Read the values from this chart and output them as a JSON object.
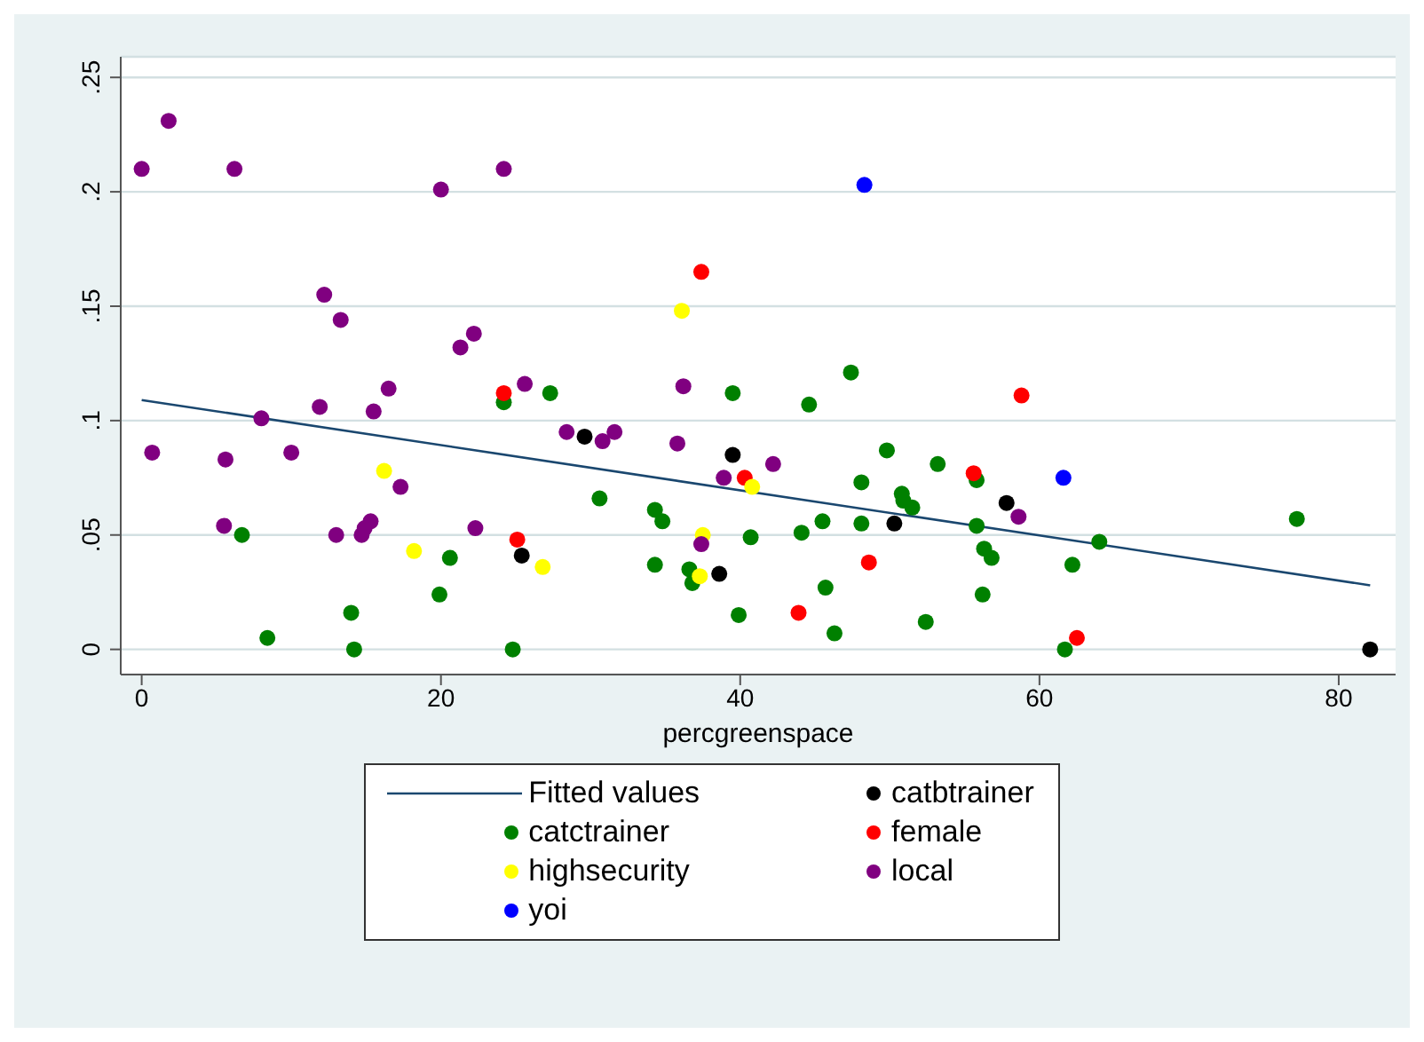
{
  "chart_data": {
    "type": "scatter",
    "xlabel": "percgreenspace",
    "xlim": [
      -1.4,
      83.8
    ],
    "ylim": [
      -0.011,
      0.259
    ],
    "xticks": [
      0,
      20,
      40,
      60,
      80
    ],
    "yticks": [
      {
        "value": 0,
        "label": "0"
      },
      {
        "value": 0.05,
        "label": ".05"
      },
      {
        "value": 0.1,
        "label": ".1"
      },
      {
        "value": 0.15,
        "label": ".15"
      },
      {
        "value": 0.2,
        "label": ".2"
      },
      {
        "value": 0.25,
        "label": ".25"
      }
    ],
    "grid": "y",
    "legend": "bottom",
    "marker": "circle",
    "series": [
      {
        "type": "line",
        "name": "Fitted values",
        "color": "#1a476f",
        "marker": "none",
        "line_style": "solid",
        "x": [
          0,
          82.1
        ],
        "values": [
          0.109,
          0.028
        ]
      },
      {
        "name": "catbtrainer",
        "color": "#000000",
        "x": [
          29.6,
          25.4,
          39.5,
          38.6,
          57.8,
          50.3,
          82.1
        ],
        "values": [
          0.093,
          0.041,
          0.085,
          0.033,
          0.064,
          0.055,
          0
        ]
      },
      {
        "name": "catctrainer",
        "color": "#008000",
        "x": [
          6.7,
          20.6,
          19.9,
          14.0,
          8.4,
          14.2,
          24.8,
          24.2,
          27.3,
          30.6,
          34.3,
          34.8,
          34.3,
          39.5,
          36.6,
          36.8,
          40.7,
          39.9,
          47.4,
          44.6,
          49.8,
          48.1,
          53.2,
          55.8,
          50.8,
          50.9,
          51.5,
          45.5,
          48.1,
          44.1,
          55.8,
          64.0,
          77.2,
          56.3,
          56.8,
          62.2,
          45.7,
          56.2,
          46.3,
          52.4,
          61.7
        ],
        "values": [
          0.05,
          0.04,
          0.024,
          0.016,
          0.005,
          0,
          0,
          0.108,
          0.112,
          0.066,
          0.061,
          0.056,
          0.037,
          0.112,
          0.035,
          0.029,
          0.049,
          0.015,
          0.121,
          0.107,
          0.087,
          0.073,
          0.081,
          0.074,
          0.068,
          0.065,
          0.062,
          0.056,
          0.055,
          0.051,
          0.054,
          0.047,
          0.057,
          0.044,
          0.04,
          0.037,
          0.027,
          0.024,
          0.007,
          0.012,
          0
        ]
      },
      {
        "name": "female",
        "color": "#ff0000",
        "x": [
          24.2,
          25.1,
          37.4,
          40.3,
          58.8,
          55.6,
          48.6,
          43.9,
          62.5
        ],
        "values": [
          0.112,
          0.048,
          0.165,
          0.075,
          0.111,
          0.077,
          0.038,
          0.016,
          0.005
        ]
      },
      {
        "name": "highsecurity",
        "color": "#ffff00",
        "x": [
          16.2,
          18.2,
          26.8,
          36.1,
          40.8,
          37.5,
          37.3
        ],
        "values": [
          0.078,
          0.043,
          0.036,
          0.148,
          0.071,
          0.05,
          0.032
        ]
      },
      {
        "name": "local",
        "color": "#800080",
        "x": [
          0,
          1.8,
          6.2,
          20.0,
          24.2,
          12.2,
          13.3,
          22.2,
          21.3,
          0.7,
          5.6,
          8.0,
          11.9,
          10.0,
          15.5,
          16.5,
          17.3,
          5.5,
          13.0,
          14.7,
          15.3,
          14.9,
          22.3,
          25.6,
          28.4,
          30.8,
          31.6,
          36.2,
          35.8,
          38.9,
          37.4,
          42.2,
          58.6
        ],
        "values": [
          0.21,
          0.231,
          0.21,
          0.201,
          0.21,
          0.155,
          0.144,
          0.138,
          0.132,
          0.086,
          0.083,
          0.101,
          0.106,
          0.086,
          0.104,
          0.114,
          0.071,
          0.054,
          0.05,
          0.05,
          0.056,
          0.053,
          0.053,
          0.116,
          0.095,
          0.091,
          0.095,
          0.115,
          0.09,
          0.075,
          0.046,
          0.081,
          0.058
        ]
      },
      {
        "name": "yoi",
        "color": "#0000ff",
        "x": [
          48.3,
          61.6
        ],
        "values": [
          0.203,
          0.075
        ]
      }
    ]
  }
}
